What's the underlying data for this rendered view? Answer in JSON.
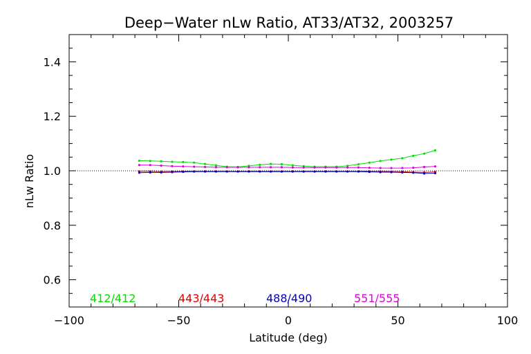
{
  "chart_data": {
    "type": "line",
    "title": "Deep−Water nLw Ratio, AT33/AT32, 2003257",
    "xlabel": "Latitude (deg)",
    "ylabel": "nLw Ratio",
    "xlim": [
      -100,
      100
    ],
    "ylim": [
      0.5,
      1.5
    ],
    "x_ticks": [
      -100,
      -50,
      0,
      50,
      100
    ],
    "x_tick_labels": [
      "−100",
      "−50",
      "0",
      "50",
      "100"
    ],
    "y_ticks": [
      0.6,
      0.8,
      1.0,
      1.2,
      1.4
    ],
    "y_tick_labels": [
      "0.6",
      "0.8",
      "1.0",
      "1.2",
      "1.4"
    ],
    "reference_line": 1.0,
    "x": [
      -68,
      -63,
      -58,
      -53,
      -48,
      -43,
      -38,
      -33,
      -28,
      -23,
      -18,
      -13,
      -8,
      -3,
      2,
      7,
      12,
      17,
      22,
      27,
      32,
      37,
      42,
      47,
      52,
      57,
      62,
      67
    ],
    "series": [
      {
        "name": "412/412",
        "color": "#00e000",
        "values": [
          1.037,
          1.036,
          1.035,
          1.033,
          1.032,
          1.03,
          1.025,
          1.02,
          1.015,
          1.014,
          1.018,
          1.022,
          1.025,
          1.024,
          1.02,
          1.017,
          1.015,
          1.015,
          1.015,
          1.018,
          1.024,
          1.03,
          1.036,
          1.041,
          1.046,
          1.055,
          1.063,
          1.075
        ]
      },
      {
        "name": "443/443",
        "color": "#e00000",
        "values": [
          0.998,
          0.998,
          0.997,
          0.997,
          0.998,
          0.998,
          0.998,
          0.998,
          0.998,
          0.998,
          0.998,
          0.998,
          0.998,
          0.998,
          0.998,
          0.998,
          0.998,
          0.998,
          0.998,
          0.998,
          0.998,
          0.998,
          0.998,
          0.997,
          0.997,
          0.995,
          0.994,
          0.996
        ]
      },
      {
        "name": "488/490",
        "color": "#0000c8",
        "values": [
          0.993,
          0.994,
          0.994,
          0.995,
          0.996,
          0.997,
          0.997,
          0.997,
          0.997,
          0.997,
          0.997,
          0.997,
          0.997,
          0.997,
          0.997,
          0.997,
          0.997,
          0.997,
          0.997,
          0.997,
          0.997,
          0.996,
          0.995,
          0.995,
          0.994,
          0.993,
          0.99,
          0.991
        ]
      },
      {
        "name": "551/555",
        "color": "#e000e0",
        "values": [
          1.021,
          1.021,
          1.019,
          1.017,
          1.016,
          1.015,
          1.014,
          1.013,
          1.013,
          1.013,
          1.013,
          1.013,
          1.013,
          1.013,
          1.012,
          1.012,
          1.012,
          1.012,
          1.012,
          1.012,
          1.012,
          1.011,
          1.01,
          1.01,
          1.01,
          1.011,
          1.014,
          1.016
        ]
      }
    ],
    "grid": false,
    "legend_position": "bottom, inside plot, horizontal"
  },
  "colors": {
    "axes": "#000000",
    "background": "#ffffff"
  }
}
